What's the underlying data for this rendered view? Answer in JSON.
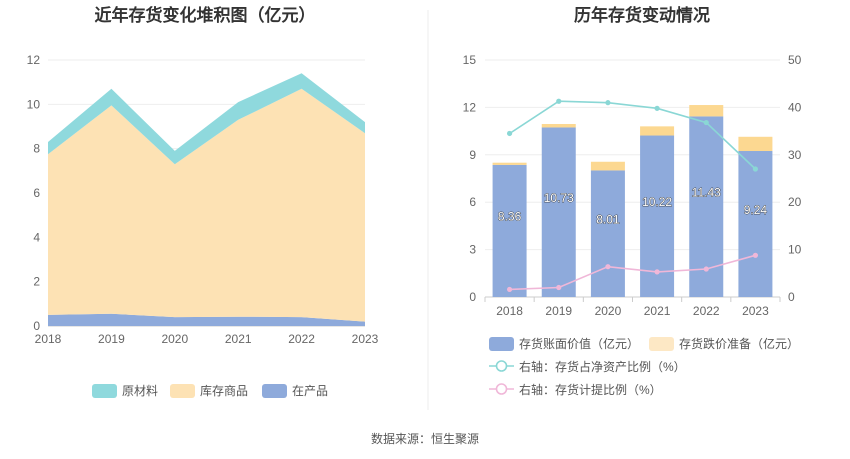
{
  "source": "数据来源：恒生聚源",
  "chart_data": [
    {
      "type": "area",
      "stacked": true,
      "title": "近年存货变化堆积图（亿元）",
      "x": [
        "2018",
        "2019",
        "2020",
        "2021",
        "2022",
        "2023"
      ],
      "ylim": [
        0,
        12
      ],
      "yticks": [
        "0",
        "2",
        "4",
        "6",
        "8",
        "10",
        "12"
      ],
      "grid": true,
      "legend_position": "bottom",
      "series": [
        {
          "name": "在产品",
          "color": "#8eaadb",
          "values": [
            0.5,
            0.55,
            0.4,
            0.42,
            0.4,
            0.2
          ]
        },
        {
          "name": "库存商品",
          "color": "#fde2b4",
          "values": [
            7.25,
            9.4,
            6.9,
            8.88,
            10.3,
            8.5
          ]
        },
        {
          "name": "原材料",
          "color": "#8fd9dd",
          "values": [
            0.55,
            0.75,
            0.6,
            0.8,
            0.7,
            0.5
          ]
        }
      ],
      "legend_order": [
        "原材料",
        "库存商品",
        "在产品"
      ]
    },
    {
      "type": "bar",
      "stacked": true,
      "title": "历年存货变动情况",
      "categories": [
        "2018",
        "2019",
        "2020",
        "2021",
        "2022",
        "2023"
      ],
      "ylim_left": [
        0,
        15
      ],
      "yticks_left": [
        "0",
        "3",
        "6",
        "9",
        "12",
        "15"
      ],
      "ylim_right": [
        0,
        50
      ],
      "yticks_right": [
        "0",
        "10",
        "20",
        "30",
        "40",
        "50"
      ],
      "grid": true,
      "legend_position": "bottom",
      "bars": [
        {
          "name": "存货账面价值（亿元）",
          "color": "#8eaadb",
          "values": [
            8.36,
            10.73,
            8.01,
            10.22,
            11.43,
            9.24
          ],
          "labels": [
            "8.36",
            "10.73",
            "8.01",
            "10.22",
            "11.43",
            "9.24"
          ]
        },
        {
          "name": "存货跌价准备（亿元）",
          "color": "#fcd891",
          "values": [
            0.14,
            0.22,
            0.55,
            0.58,
            0.72,
            0.9
          ]
        }
      ],
      "lines": [
        {
          "name": "右轴：存货占净资产比例（%）",
          "color": "#8ad7d5",
          "values": [
            34.5,
            41.3,
            41.0,
            39.8,
            36.8,
            27.0
          ]
        },
        {
          "name": "右轴：存货计提比例（%）",
          "color": "#f0b7d8",
          "values": [
            1.6,
            2.0,
            6.4,
            5.3,
            5.9,
            8.8
          ]
        }
      ]
    }
  ]
}
